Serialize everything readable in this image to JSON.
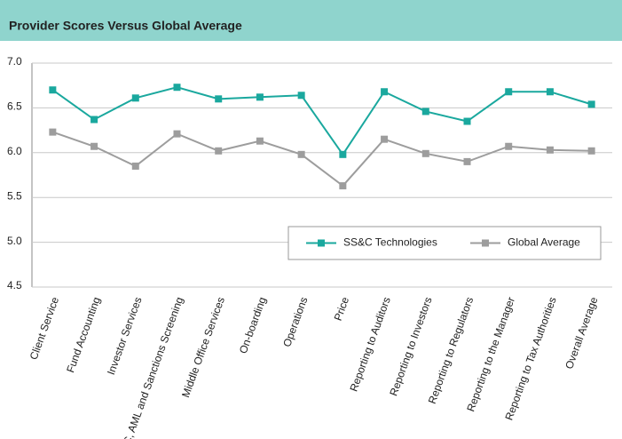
{
  "chart_data": {
    "type": "line",
    "title": "Provider Scores Versus Global Average",
    "categories": [
      "Client Service",
      "Fund Accounting",
      "Investor Services",
      "KYC, AML and Sanctions Screening",
      "Middle Office Services",
      "On-boarding",
      "Operations",
      "Price",
      "Reporting to Auditors",
      "Reporting to Investors",
      "Reporting to Regulators",
      "Reporting to the Manager",
      "Reporting to Tax Authorities",
      "Overall Average"
    ],
    "series": [
      {
        "name": "SS&C Technologies",
        "color": "#1aa89e",
        "values": [
          6.7,
          6.37,
          6.61,
          6.73,
          6.6,
          6.62,
          6.64,
          5.98,
          6.68,
          6.46,
          6.35,
          6.68,
          6.68,
          6.54
        ]
      },
      {
        "name": "Global Average",
        "color": "#9d9d9d",
        "values": [
          6.23,
          6.07,
          5.85,
          6.21,
          6.02,
          6.13,
          5.98,
          5.63,
          6.15,
          5.99,
          5.9,
          6.07,
          6.03,
          6.02
        ]
      }
    ],
    "ylim": [
      4.5,
      7.0
    ],
    "yticks": [
      4.5,
      {
        "value": 5,
        "label": "5.0"
      },
      5.5,
      {
        "value": 6,
        "label": "6.0"
      },
      6.5,
      {
        "value": 7,
        "label": "7.0"
      }
    ],
    "grid": true,
    "legend": "lower right"
  }
}
